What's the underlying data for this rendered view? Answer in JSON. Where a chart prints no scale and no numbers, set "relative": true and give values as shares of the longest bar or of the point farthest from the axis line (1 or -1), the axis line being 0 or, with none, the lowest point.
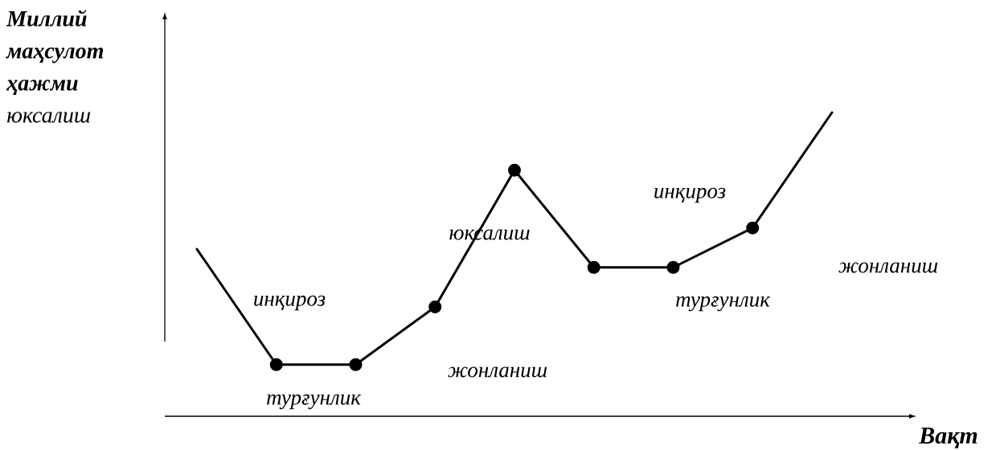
{
  "chart_data": {
    "type": "line",
    "relative": true,
    "xlabel": "Вақт",
    "ylabel": "**Миллий маҳсулот ҳажми** юксалиш",
    "categories": [
      null,
      null,
      null,
      null,
      null,
      null,
      null,
      null,
      null
    ],
    "marker": "circle",
    "series": [
      {
        "color": "#000000",
        "values": [
          0.55,
          0.17,
          0.17,
          0.36,
          0.81,
          0.49,
          0.49,
          0.62,
          1.0
        ]
      }
    ],
    "annotations": [
      "инқироз",
      "турғунлик",
      "жонланиш",
      "юксалиш",
      "инқироз",
      "турғунлик",
      "жонланиш"
    ]
  }
}
